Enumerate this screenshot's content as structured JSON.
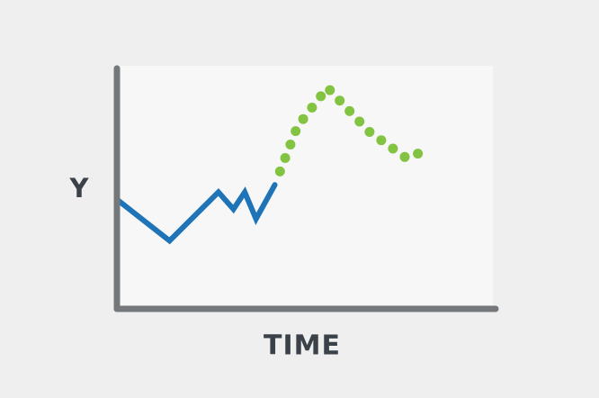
{
  "chart_data": {
    "type": "line",
    "xlabel": "TIME",
    "ylabel": "Y",
    "grid": false,
    "series": [
      {
        "style": "solid",
        "color": "#1f73b7",
        "points": [
          [
            0,
            45
          ],
          [
            14,
            28
          ],
          [
            27,
            48
          ],
          [
            31,
            41
          ],
          [
            34,
            48
          ],
          [
            37,
            37
          ],
          [
            42,
            51
          ]
        ]
      },
      {
        "style": "dotted",
        "color": "#82c341",
        "points": [
          [
            42,
            51
          ],
          [
            48,
            75
          ],
          [
            56,
            91
          ],
          [
            67,
            73
          ],
          [
            77,
            62
          ],
          [
            82,
            65
          ]
        ]
      }
    ],
    "colors": {
      "plot_background": "#f7f7f7",
      "page_background": "#efefef",
      "axis": "#75787b",
      "label": "#3b4149"
    }
  }
}
